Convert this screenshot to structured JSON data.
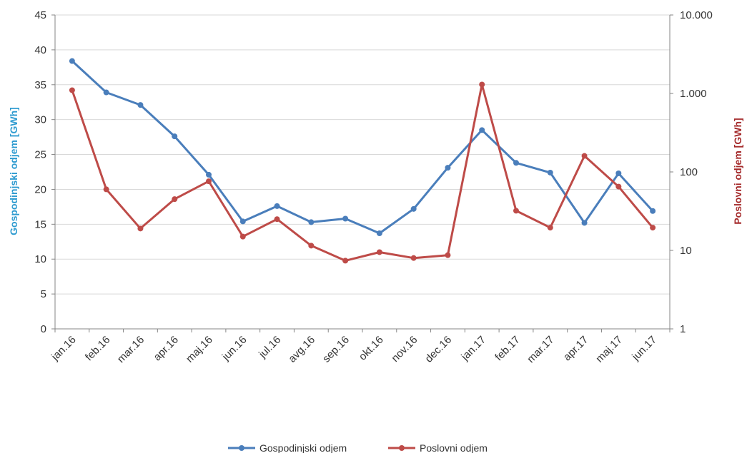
{
  "chart_data": {
    "type": "line",
    "categories": [
      "jan.16",
      "feb.16",
      "mar.16",
      "apr.16",
      "maj.16",
      "jun.16",
      "jul.16",
      "avg.16",
      "sep.16",
      "okt.16",
      "nov.16",
      "dec.16",
      "jan.17",
      "feb.17",
      "mar.17",
      "apr.17",
      "maj.17",
      "jun.17"
    ],
    "series": [
      {
        "name": "Gospodinjski odjem",
        "axis": "left",
        "color": "#4a7ebb",
        "values": [
          38.4,
          33.9,
          32.1,
          27.6,
          22.1,
          15.4,
          17.6,
          15.3,
          15.8,
          13.7,
          17.2,
          23.1,
          28.5,
          23.8,
          22.4,
          15.2,
          22.3,
          16.9
        ]
      },
      {
        "name": "Poslovni odjem",
        "axis": "right",
        "color": "#be4b48",
        "values": [
          1100,
          60,
          19,
          45,
          76,
          15,
          25,
          11.5,
          7.4,
          9.5,
          8,
          8.7,
          1300,
          32,
          19.5,
          160,
          65,
          19.5
        ]
      }
    ],
    "y_left": {
      "label": "Gospodinjski odjem [GWh]",
      "color": "#2e9bd0",
      "range": [
        0,
        45
      ],
      "ticks": [
        0,
        5,
        10,
        15,
        20,
        25,
        30,
        35,
        40,
        45
      ]
    },
    "y_right": {
      "label": "Poslovni odjem [GWh]",
      "color": "#a4292a",
      "scale": "log",
      "range": [
        1,
        10000
      ],
      "ticks": [
        1,
        10,
        100,
        1000,
        10000
      ],
      "tick_labels": [
        "1",
        "10",
        "100",
        "1.000",
        "10.000"
      ]
    },
    "grid": "horizontal",
    "legend_position": "bottom-center"
  }
}
